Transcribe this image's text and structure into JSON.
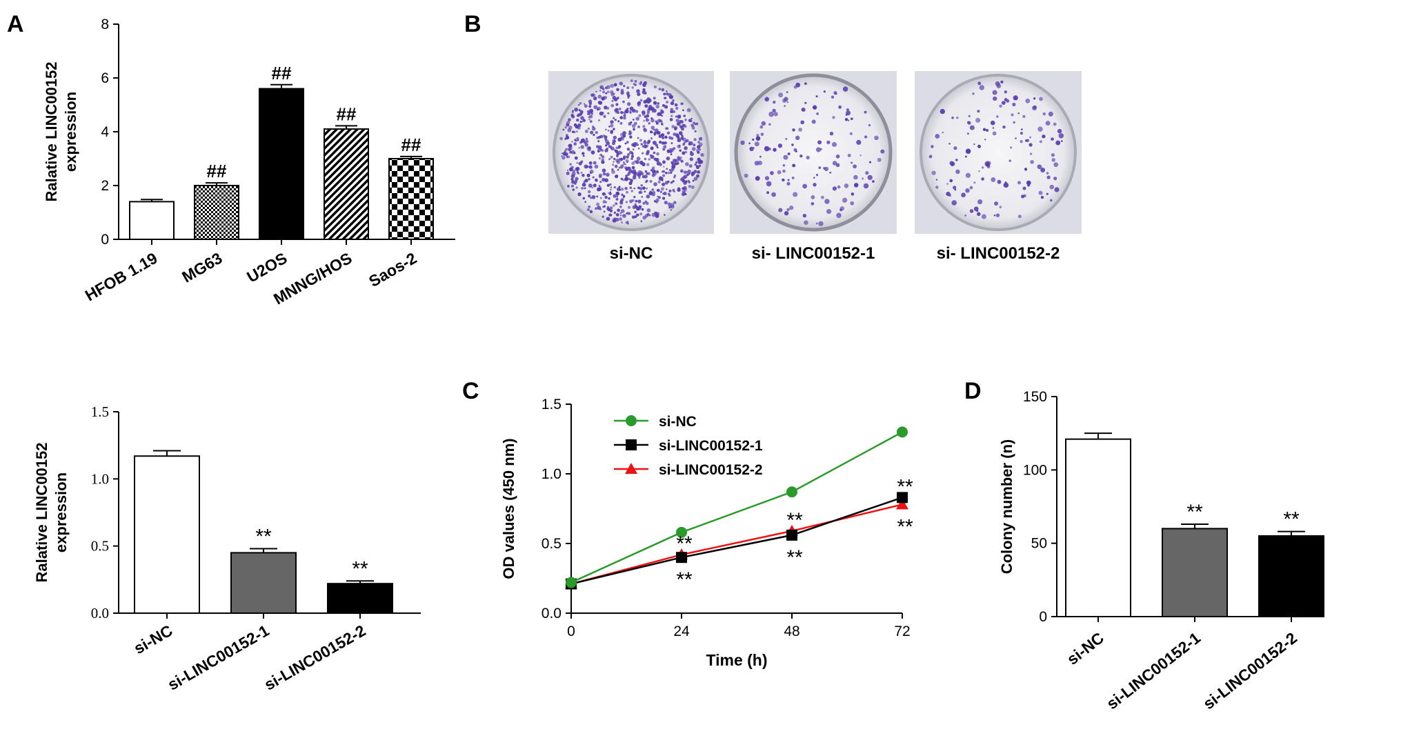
{
  "panels": {
    "A": "A",
    "B": "B",
    "C": "C",
    "D": "D"
  },
  "colors": {
    "green": "#2a9a2a",
    "black": "#000000",
    "red": "#ee1111",
    "gray": "#666666",
    "dish_stain": "#5a3fae"
  },
  "panel_b": {
    "dishes": [
      {
        "label": "si-NC",
        "density": "high"
      },
      {
        "label": "si- LINC00152-1",
        "density": "low"
      },
      {
        "label": "si- LINC00152-2",
        "density": "low"
      }
    ]
  },
  "chart_data": [
    {
      "id": "A",
      "type": "bar",
      "categories": [
        "HFOB 1.19",
        "MG63",
        "U2OS",
        "MNNG/HOS",
        "Saos-2"
      ],
      "values": [
        1.4,
        2.0,
        5.6,
        4.1,
        3.0
      ],
      "errors": [
        0.08,
        0.1,
        0.15,
        0.12,
        0.08
      ],
      "fills": [
        "white",
        "fine-check",
        "black",
        "diagonal",
        "checker"
      ],
      "annotations": [
        "",
        "##",
        "##",
        "##",
        "##"
      ],
      "ylabel": [
        "Ralative LINC00152",
        "expression"
      ],
      "ylim": [
        0,
        8
      ],
      "yticks": [
        "0",
        "2",
        "4",
        "6",
        "8"
      ]
    },
    {
      "id": "E",
      "type": "bar",
      "categories": [
        "si-NC",
        "si-LINC00152-1",
        "si-LINC00152-2"
      ],
      "values": [
        1.17,
        0.45,
        0.22
      ],
      "errors": [
        0.04,
        0.03,
        0.02
      ],
      "fills": [
        "#ffffff",
        "#666666",
        "#000000"
      ],
      "annotations": [
        "",
        "**",
        "**"
      ],
      "ylabel": [
        "Ralative LINC00152",
        "expression"
      ],
      "ylim": [
        0,
        1.5
      ],
      "yticks": [
        "0.0",
        "0.5",
        "1.0",
        "1.5"
      ]
    },
    {
      "id": "C",
      "type": "line",
      "x": [
        0,
        24,
        48,
        72
      ],
      "xticks": [
        "0",
        "24",
        "48",
        "72"
      ],
      "series": [
        {
          "name": "si-NC",
          "values": [
            0.22,
            0.58,
            0.87,
            1.3
          ],
          "color": "#2a9a2a",
          "marker": "circle"
        },
        {
          "name": "si-LINC00152-1",
          "values": [
            0.21,
            0.4,
            0.56,
            0.83
          ],
          "color": "#000000",
          "marker": "square"
        },
        {
          "name": "si-LINC00152-2",
          "values": [
            0.21,
            0.42,
            0.59,
            0.78
          ],
          "color": "#ee1111",
          "marker": "triangle"
        }
      ],
      "annotations": [
        {
          "x": 24,
          "text": "**",
          "pos": "above"
        },
        {
          "x": 24,
          "text": "**",
          "pos": "below"
        },
        {
          "x": 48,
          "text": "**",
          "pos": "above"
        },
        {
          "x": 48,
          "text": "**",
          "pos": "below"
        },
        {
          "x": 72,
          "text": "**",
          "pos": "above"
        },
        {
          "x": 72,
          "text": "**",
          "pos": "below"
        }
      ],
      "xlabel": "Time (h)",
      "ylabel": "OD values (450 nm)",
      "xlim": [
        0,
        72
      ],
      "ylim": [
        0,
        1.5
      ],
      "yticks": [
        "0.0",
        "0.5",
        "1.0",
        "1.5"
      ],
      "legend": "top-left"
    },
    {
      "id": "D",
      "type": "bar",
      "categories": [
        "si-NC",
        "si-LINC00152-1",
        "si-LINC00152-2"
      ],
      "values": [
        121,
        60,
        55
      ],
      "errors": [
        4,
        3,
        3
      ],
      "fills": [
        "#ffffff",
        "#666666",
        "#000000"
      ],
      "annotations": [
        "",
        "**",
        "**"
      ],
      "ylabel": [
        "Colony number (n)"
      ],
      "ylim": [
        0,
        150
      ],
      "yticks": [
        "0",
        "50",
        "100",
        "150"
      ]
    }
  ]
}
